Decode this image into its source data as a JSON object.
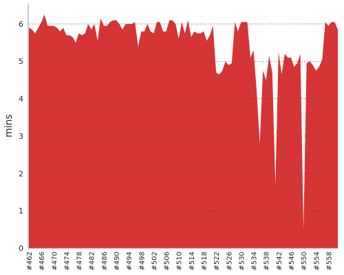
{
  "chart_data": {
    "type": "area",
    "y_label": "mins",
    "color": "#d63535",
    "categories": [
      "#462",
      null,
      null,
      null,
      "#466",
      null,
      null,
      null,
      "#470",
      null,
      null,
      null,
      "#474",
      null,
      null,
      null,
      "#478",
      null,
      null,
      null,
      "#482",
      null,
      null,
      null,
      "#486",
      null,
      null,
      null,
      "#490",
      null,
      null,
      null,
      "#494",
      null,
      null,
      null,
      "#498",
      null,
      null,
      null,
      "#502",
      null,
      null,
      null,
      "#506",
      null,
      null,
      null,
      "#510",
      null,
      null,
      null,
      "#514",
      null,
      null,
      null,
      "#518",
      null,
      null,
      null,
      "#522",
      null,
      null,
      null,
      "#526",
      null,
      null,
      null,
      "#530",
      null,
      null,
      null,
      "#534",
      null,
      null,
      null,
      "#538",
      null,
      null,
      null,
      "#542",
      null,
      null,
      null,
      "#546",
      null,
      null,
      null,
      "#550",
      null,
      null,
      null,
      "#554",
      null,
      null,
      null,
      "#558",
      null,
      null,
      null
    ],
    "values": [
      5.9,
      5.85,
      5.75,
      5.9,
      6.05,
      6.25,
      5.95,
      5.95,
      5.95,
      5.9,
      5.8,
      5.9,
      5.7,
      5.7,
      5.65,
      5.5,
      5.75,
      5.7,
      5.75,
      6.0,
      5.85,
      6.0,
      5.55,
      6.15,
      5.95,
      5.95,
      6.05,
      6.1,
      6.1,
      6.0,
      5.85,
      6.0,
      6.0,
      6.0,
      6.05,
      5.4,
      5.8,
      5.8,
      6.0,
      5.8,
      5.75,
      6.05,
      6.05,
      5.8,
      5.8,
      6.1,
      6.1,
      6.0,
      5.6,
      6.05,
      5.75,
      6.1,
      5.65,
      5.8,
      5.75,
      5.75,
      5.8,
      5.55,
      5.7,
      5.95,
      4.7,
      4.65,
      4.75,
      5.0,
      4.9,
      4.95,
      6.05,
      5.8,
      6.05,
      6.05,
      6.05,
      5.1,
      5.3,
      4.2,
      2.8,
      4.75,
      4.5,
      5.15,
      4.7,
      1.7,
      5.25,
      4.65,
      5.2,
      5.1,
      5.1,
      4.85,
      4.95,
      5.2,
      0.5,
      4.95,
      5.0,
      4.9,
      4.75,
      4.85,
      5.05,
      6.05,
      5.95,
      6.05,
      6.05,
      5.85
    ],
    "ylim": [
      0,
      6.55
    ],
    "yticks": [
      0,
      1,
      2,
      3,
      4,
      5,
      6
    ],
    "grid": true
  }
}
